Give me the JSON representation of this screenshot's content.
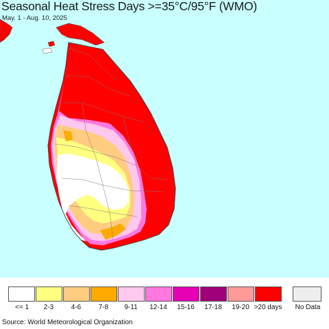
{
  "header": {
    "title": "Seasonal Heat Stress Days >=35°C/95°F (WMO)",
    "subtitle": "May. 1 - Aug. 10, 2025"
  },
  "colors": {
    "ocean": "#c9ffff",
    "land_outline": "#555555"
  },
  "legend": {
    "items": [
      {
        "label": "<= 1",
        "color": "#ffffff"
      },
      {
        "label": "2-3",
        "color": "#ffff80"
      },
      {
        "label": "4-6",
        "color": "#ffcc80"
      },
      {
        "label": "7-8",
        "color": "#ffaa00"
      },
      {
        "label": "9-11",
        "color": "#ffc8ee"
      },
      {
        "label": "12-14",
        "color": "#ff78e0"
      },
      {
        "label": "15-16",
        "color": "#e600b4"
      },
      {
        "label": "17-18",
        "color": "#a0007a"
      },
      {
        "label": "19-20",
        "color": "#ff9a9a"
      },
      {
        "label": ">20 days",
        "color": "#ff0000"
      }
    ],
    "no_data": {
      "label": "No Data",
      "color": "#eeeeee"
    }
  },
  "source": "Source: World Meteorological Organization"
}
